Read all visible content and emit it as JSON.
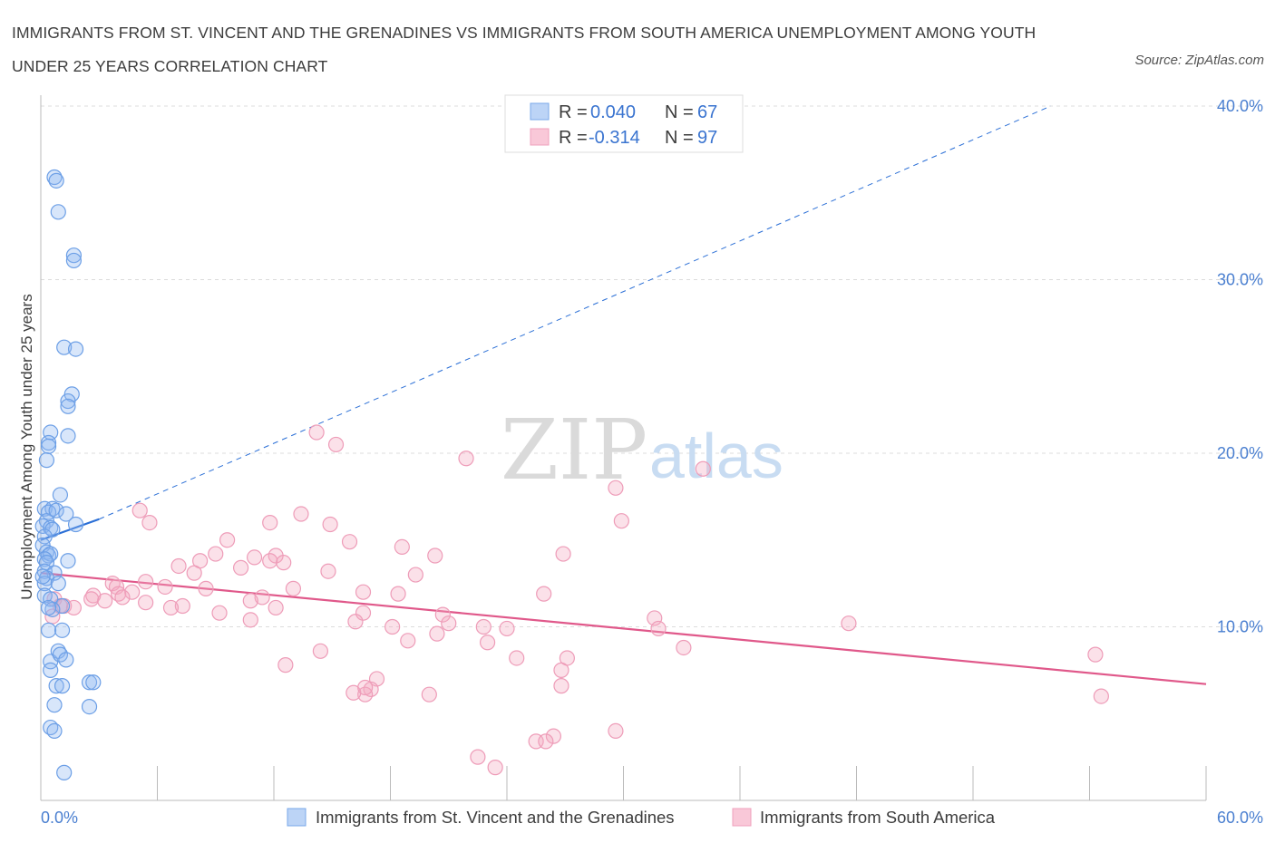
{
  "title": "IMMIGRANTS FROM ST. VINCENT AND THE GRENADINES VS IMMIGRANTS FROM SOUTH AMERICA UNEMPLOYMENT AMONG YOUTH UNDER 25 YEARS CORRELATION CHART",
  "source": "Source: ZipAtlas.com",
  "watermark": {
    "zip": "ZIP",
    "atlas": "atlas"
  },
  "colors": {
    "blue": "#8fb8f0",
    "blue_line": "#2b6fd6",
    "pink": "#f4a8c0",
    "pink_line": "#e0588a",
    "tick": "#4a7fd0",
    "grid": "#dcdcdc"
  },
  "legend": {
    "rows": [
      {
        "r_label": "R =",
        "r_value": "0.040",
        "n_label": "N =",
        "n_value": "67"
      },
      {
        "r_label": "R =",
        "r_value": "-0.314",
        "n_label": "N =",
        "n_value": "97"
      }
    ]
  },
  "chart_data": {
    "type": "scatter",
    "xlabel": "",
    "ylabel": "Unemployment Among Youth under 25 years",
    "xlim": [
      0,
      60
    ],
    "ylim": [
      0,
      40
    ],
    "x_ticks": [
      "0.0%",
      "60.0%"
    ],
    "y_ticks": [
      {
        "value": 10,
        "label": "10.0%"
      },
      {
        "value": 20,
        "label": "20.0%"
      },
      {
        "value": 30,
        "label": "30.0%"
      },
      {
        "value": 40,
        "label": "40.0%"
      }
    ],
    "grid": "horizontal dashed",
    "legend_position": "bottom",
    "series": [
      {
        "name": "Immigrants from St. Vincent and the Grenadines",
        "color": "#8fb8f0",
        "trend": {
          "x": [
            0,
            3
          ],
          "y": [
            15.0,
            16.2
          ],
          "dashed_extension_to": [
            52,
            40
          ]
        },
        "points": [
          [
            0.7,
            35.9
          ],
          [
            0.8,
            35.7
          ],
          [
            0.9,
            33.9
          ],
          [
            1.7,
            31.4
          ],
          [
            1.7,
            31.1
          ],
          [
            1.2,
            26.1
          ],
          [
            1.8,
            26.0
          ],
          [
            1.6,
            23.4
          ],
          [
            1.4,
            23.0
          ],
          [
            1.4,
            22.7
          ],
          [
            0.5,
            21.2
          ],
          [
            1.4,
            21.0
          ],
          [
            0.4,
            20.6
          ],
          [
            0.4,
            20.4
          ],
          [
            0.3,
            19.6
          ],
          [
            1.0,
            17.6
          ],
          [
            0.2,
            16.8
          ],
          [
            0.6,
            16.8
          ],
          [
            0.4,
            16.6
          ],
          [
            0.8,
            16.7
          ],
          [
            1.3,
            16.5
          ],
          [
            0.3,
            16.1
          ],
          [
            0.1,
            15.8
          ],
          [
            0.5,
            15.7
          ],
          [
            0.6,
            15.6
          ],
          [
            1.8,
            15.9
          ],
          [
            0.2,
            15.2
          ],
          [
            0.1,
            14.7
          ],
          [
            0.3,
            14.3
          ],
          [
            0.4,
            14.1
          ],
          [
            0.5,
            14.2
          ],
          [
            0.2,
            13.9
          ],
          [
            0.3,
            13.7
          ],
          [
            1.4,
            13.8
          ],
          [
            0.2,
            13.2
          ],
          [
            0.7,
            13.1
          ],
          [
            0.3,
            12.8
          ],
          [
            0.2,
            12.5
          ],
          [
            0.1,
            12.9
          ],
          [
            0.9,
            12.5
          ],
          [
            0.2,
            11.8
          ],
          [
            0.5,
            11.6
          ],
          [
            1.1,
            11.2
          ],
          [
            0.6,
            11.0
          ],
          [
            0.4,
            11.1
          ],
          [
            0.4,
            9.8
          ],
          [
            1.1,
            9.8
          ],
          [
            0.5,
            8.0
          ],
          [
            0.9,
            8.6
          ],
          [
            1.0,
            8.4
          ],
          [
            1.3,
            8.1
          ],
          [
            0.5,
            7.5
          ],
          [
            0.8,
            6.6
          ],
          [
            1.1,
            6.6
          ],
          [
            2.5,
            6.8
          ],
          [
            2.7,
            6.8
          ],
          [
            0.7,
            5.5
          ],
          [
            2.5,
            5.4
          ],
          [
            0.5,
            4.2
          ],
          [
            0.7,
            4.0
          ],
          [
            1.2,
            1.6
          ]
        ]
      },
      {
        "name": "Immigrants from South America",
        "color": "#f4a8c0",
        "trend": {
          "x": [
            0,
            60
          ],
          "y": [
            13.1,
            6.7
          ]
        },
        "points": [
          [
            14.2,
            21.2
          ],
          [
            15.2,
            20.5
          ],
          [
            21.9,
            19.7
          ],
          [
            34.1,
            19.1
          ],
          [
            29.6,
            18.0
          ],
          [
            5.1,
            16.7
          ],
          [
            13.4,
            16.5
          ],
          [
            11.8,
            16.0
          ],
          [
            5.6,
            16.0
          ],
          [
            14.9,
            15.9
          ],
          [
            29.9,
            16.1
          ],
          [
            9.6,
            15.0
          ],
          [
            15.9,
            14.9
          ],
          [
            18.6,
            14.6
          ],
          [
            9.0,
            14.2
          ],
          [
            11.0,
            14.0
          ],
          [
            12.1,
            14.1
          ],
          [
            20.3,
            14.1
          ],
          [
            26.9,
            14.2
          ],
          [
            8.2,
            13.8
          ],
          [
            11.8,
            13.8
          ],
          [
            12.5,
            13.7
          ],
          [
            7.1,
            13.5
          ],
          [
            10.3,
            13.4
          ],
          [
            14.8,
            13.2
          ],
          [
            19.3,
            13.0
          ],
          [
            7.9,
            13.1
          ],
          [
            5.4,
            12.6
          ],
          [
            6.4,
            12.3
          ],
          [
            3.7,
            12.5
          ],
          [
            3.9,
            12.3
          ],
          [
            13.0,
            12.2
          ],
          [
            16.6,
            12.0
          ],
          [
            18.4,
            11.9
          ],
          [
            25.9,
            11.9
          ],
          [
            8.5,
            12.2
          ],
          [
            4.7,
            12.0
          ],
          [
            4.0,
            11.9
          ],
          [
            2.7,
            11.8
          ],
          [
            11.4,
            11.7
          ],
          [
            4.2,
            11.7
          ],
          [
            2.6,
            11.6
          ],
          [
            3.3,
            11.5
          ],
          [
            7.3,
            11.2
          ],
          [
            10.8,
            11.5
          ],
          [
            5.4,
            11.4
          ],
          [
            0.7,
            11.6
          ],
          [
            1.2,
            11.2
          ],
          [
            1.7,
            11.1
          ],
          [
            0.6,
            10.6
          ],
          [
            9.2,
            10.8
          ],
          [
            16.6,
            10.8
          ],
          [
            20.7,
            10.7
          ],
          [
            16.2,
            10.3
          ],
          [
            10.8,
            10.4
          ],
          [
            21.0,
            10.2
          ],
          [
            22.8,
            10.0
          ],
          [
            31.6,
            10.5
          ],
          [
            18.1,
            10.0
          ],
          [
            41.6,
            10.2
          ],
          [
            24.0,
            9.9
          ],
          [
            31.8,
            9.9
          ],
          [
            20.4,
            9.6
          ],
          [
            18.9,
            9.2
          ],
          [
            23.0,
            9.1
          ],
          [
            33.1,
            8.8
          ],
          [
            54.3,
            8.4
          ],
          [
            14.4,
            8.6
          ],
          [
            24.5,
            8.2
          ],
          [
            27.1,
            8.2
          ],
          [
            12.6,
            7.8
          ],
          [
            26.8,
            7.5
          ],
          [
            17.3,
            7.0
          ],
          [
            17.0,
            6.4
          ],
          [
            16.7,
            6.1
          ],
          [
            20.0,
            6.1
          ],
          [
            26.8,
            6.6
          ],
          [
            54.6,
            6.0
          ],
          [
            29.6,
            4.0
          ],
          [
            26.4,
            3.7
          ],
          [
            25.5,
            3.4
          ],
          [
            26.0,
            3.4
          ],
          [
            22.5,
            2.5
          ],
          [
            23.4,
            1.9
          ],
          [
            16.1,
            6.2
          ],
          [
            16.7,
            6.5
          ],
          [
            12.1,
            11.1
          ],
          [
            6.7,
            11.1
          ],
          [
            1.0,
            11.2
          ]
        ]
      }
    ]
  },
  "bottom_legend": [
    {
      "label": "Immigrants from St. Vincent and the Grenadines"
    },
    {
      "label": "Immigrants from South America"
    }
  ]
}
